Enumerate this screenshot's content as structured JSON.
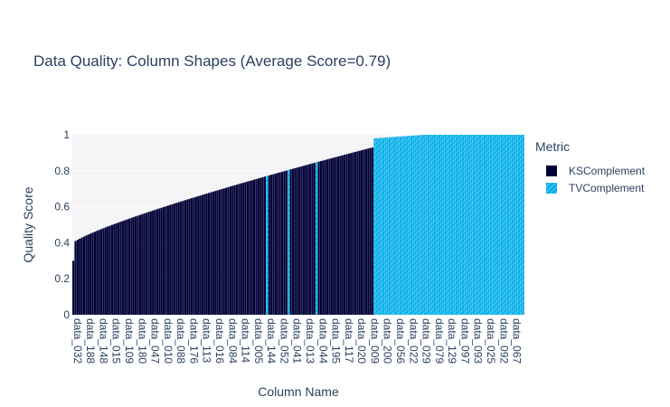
{
  "chart_data": {
    "type": "bar",
    "title": "Data Quality: Column Shapes (Average Score=0.79)",
    "xlabel": "Column Name",
    "ylabel": "Quality Score",
    "ylim": [
      0,
      1
    ],
    "yticks": [
      "0",
      "0.2",
      "0.4",
      "0.6",
      "0.8",
      "1"
    ],
    "legend_title": "Metric",
    "legend_position": "right",
    "grid": true,
    "colors": {
      "KSComplement": "#000036",
      "TVComplement": "#03afe9",
      "plot_bg": "#f5f5f8"
    },
    "categories": [
      "data_032",
      "data_188",
      "data_148",
      "data_015",
      "data_109",
      "data_180",
      "data_047",
      "data_010",
      "data_088",
      "data_176",
      "data_113",
      "data_016",
      "data_084",
      "data_114",
      "data_005",
      "data_144",
      "data_052",
      "data_041",
      "data_013",
      "data_044",
      "data_195",
      "data_117",
      "data_020",
      "data_009",
      "data_200",
      "data_056",
      "data_022",
      "data_029",
      "data_079",
      "data_129",
      "data_097",
      "data_093",
      "data_025",
      "data_092",
      "data_067"
    ],
    "series": [
      {
        "name": "KSComplement",
        "count": 140,
        "values_start": 0.3,
        "values_end": 0.93
      },
      {
        "name": "TVComplement",
        "count": 70,
        "values_start": 0.98,
        "values_end": 1.0
      }
    ],
    "tv_within_ks_indices": [
      90,
      100,
      113
    ]
  }
}
